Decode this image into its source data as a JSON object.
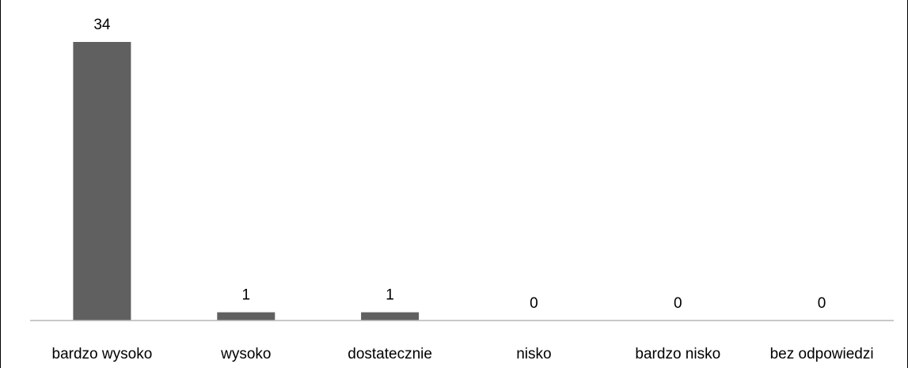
{
  "chart_data": {
    "type": "bar",
    "categories": [
      "bardzo wysoko",
      "wysoko",
      "dostatecznie",
      "nisko",
      "bardzo nisko",
      "bez odpowiedzi"
    ],
    "values": [
      34,
      1,
      1,
      0,
      0,
      0
    ],
    "data_labels": [
      "34",
      "1",
      "1",
      "0",
      "0",
      "0"
    ],
    "title": "",
    "xlabel": "",
    "ylabel": "",
    "ylim": [
      0,
      34
    ],
    "grid": false,
    "legend": "none",
    "colors": {
      "bar": "#606060",
      "axis": "#b7b7b7",
      "text": "#000000",
      "frame": "#000000"
    }
  }
}
